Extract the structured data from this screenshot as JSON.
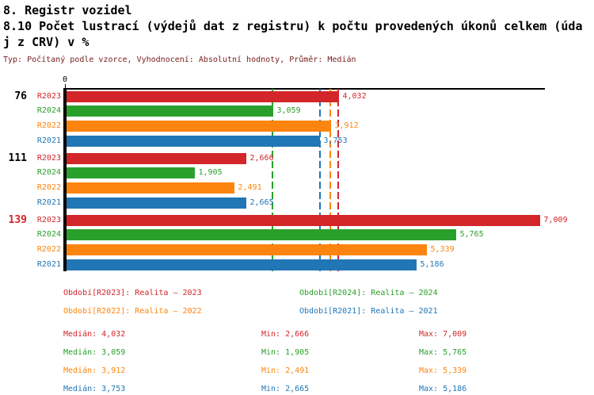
{
  "header": {
    "title": "8. Registr vozidel",
    "subtitle_line1": "8.10 Počet lustrací (výdejů dat z registru) k počtu provedených úkonů celkem (úda",
    "subtitle_line2": "j z CRV) v %",
    "meta": "Typ: Počítaný podle vzorce, Vyhodnocení: Absolutní hodnoty, Průměr: Medián"
  },
  "colors": {
    "R2023": "#d2262a",
    "R2024": "#2aa02c",
    "R2022": "#fd840e",
    "R2021": "#2176b5",
    "axis": "#000000",
    "meta_text": "#7a2020",
    "group_label_default": "#000000",
    "group_label_highlight": "#d2262a"
  },
  "chart_data": {
    "type": "bar",
    "orientation": "horizontal",
    "title": "8.10 Počet lustrací (výdejů dat z registru) k počtu provedených úkonů celkem (údaj z CRV) v %",
    "zero_label": "0",
    "xlim": [
      0,
      7080
    ],
    "grid": false,
    "categories": [
      "76",
      "111",
      "139"
    ],
    "highlighted_category": "139",
    "series_order": [
      "R2023",
      "R2024",
      "R2022",
      "R2021"
    ],
    "series": [
      {
        "name": "R2023",
        "values": [
          4032,
          2666,
          7009
        ],
        "labels": [
          "4,032",
          "2,666",
          "7,009"
        ],
        "median": 4032
      },
      {
        "name": "R2024",
        "values": [
          3059,
          1905,
          5765
        ],
        "labels": [
          "3,059",
          "1,905",
          "5,765"
        ],
        "median": 3059
      },
      {
        "name": "R2022",
        "values": [
          3912,
          2491,
          5339
        ],
        "labels": [
          "3,912",
          "2,491",
          "5,339"
        ],
        "median": 3912
      },
      {
        "name": "R2021",
        "values": [
          3753,
          2665,
          5186
        ],
        "labels": [
          "3,753",
          "2,665",
          "5,186"
        ],
        "median": 3753
      }
    ],
    "median_lines": [
      {
        "series": "R2023",
        "value": 4032
      },
      {
        "series": "R2024",
        "value": 3059
      },
      {
        "series": "R2022",
        "value": 3912
      },
      {
        "series": "R2021",
        "value": 3753
      }
    ]
  },
  "legend": {
    "items": [
      {
        "series": "R2023",
        "label": "Období[R2023]: Realita – 2023"
      },
      {
        "series": "R2024",
        "label": "Období[R2024]: Realita – 2024"
      },
      {
        "series": "R2022",
        "label": "Období[R2022]: Realita – 2022"
      },
      {
        "series": "R2021",
        "label": "Období[R2021]: Realita – 2021"
      }
    ]
  },
  "stats": {
    "rows": [
      {
        "series": "R2023",
        "median": "Medián: 4,032",
        "min": "Min: 2,666",
        "max": "Max: 7,009"
      },
      {
        "series": "R2024",
        "median": "Medián: 3,059",
        "min": "Min: 1,905",
        "max": "Max: 5,765"
      },
      {
        "series": "R2022",
        "median": "Medián: 3,912",
        "min": "Min: 2,491",
        "max": "Max: 5,339"
      },
      {
        "series": "R2021",
        "median": "Medián: 3,753",
        "min": "Min: 2,665",
        "max": "Max: 5,186"
      }
    ]
  }
}
